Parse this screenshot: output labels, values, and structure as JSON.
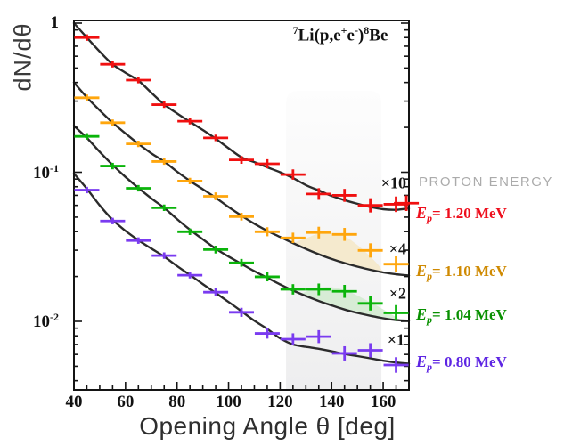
{
  "figure": {
    "reaction_label": {
      "segments": [
        {
          "t": "7",
          "sup": true
        },
        {
          "t": "Li(p,e",
          "sup": false
        },
        {
          "t": "+",
          "sup": true
        },
        {
          "t": "e",
          "sup": false
        },
        {
          "t": "-",
          "sup": true
        },
        {
          "t": ")",
          "sup": false
        },
        {
          "t": "8",
          "sup": true
        },
        {
          "t": "Be",
          "sup": false
        }
      ]
    },
    "legend_header": "PROTON ENERGY",
    "legend_header_color": "#ababab"
  },
  "chart_data": {
    "type": "scatter",
    "title": "7Li(p,e+e-)8Be",
    "xlabel": "Opening Angle θ [deg]",
    "ylabel": "dN/dθ",
    "x_scale": "linear",
    "y_scale": "log",
    "xlim": [
      40,
      170
    ],
    "ylim": [
      0.0035,
      1
    ],
    "grid": false,
    "x_major_ticks": [
      40,
      60,
      80,
      100,
      120,
      140,
      160
    ],
    "x_minor_step": 5,
    "y_major_ticks": [
      {
        "base": "1",
        "exp": "",
        "value": 1
      },
      {
        "base": "10",
        "exp": "-1",
        "value": 0.1
      },
      {
        "base": "10",
        "exp": "-2",
        "value": 0.01
      }
    ],
    "highlight_band": {
      "x0": 122.3,
      "x1": 159.3,
      "color_top": "#fdfdfd",
      "color_bottom": "#eeeeef"
    },
    "curve_color": "#2b2b2b",
    "series": [
      {
        "name": "Ep = 1.20 MeV",
        "scale_label": "×10",
        "color": "#f01010",
        "legend": {
          "E": "E",
          "sub": "p",
          "rest": "= 1.20 MeV",
          "color": "#ee0e1c"
        },
        "points": [
          [
            45,
            0.8,
            0.05
          ],
          [
            55,
            0.53,
            0.05
          ],
          [
            65,
            0.415,
            0.05
          ],
          [
            75,
            0.284,
            0.05
          ],
          [
            85,
            0.22,
            0.05
          ],
          [
            95,
            0.17,
            0.05
          ],
          [
            105,
            0.121,
            0.06
          ],
          [
            115,
            0.114,
            0.07
          ],
          [
            125,
            0.0965,
            0.08
          ],
          [
            135,
            0.0715,
            0.09
          ],
          [
            145,
            0.07,
            0.1
          ],
          [
            155,
            0.06,
            0.11
          ],
          [
            165,
            0.061,
            0.12
          ],
          [
            169,
            0.062,
            0.12
          ]
        ],
        "curve": [
          [
            40,
            1.0
          ],
          [
            45,
            0.8
          ],
          [
            50,
            0.645
          ],
          [
            55,
            0.53
          ],
          [
            60,
            0.465
          ],
          [
            65,
            0.412
          ],
          [
            70,
            0.342
          ],
          [
            75,
            0.285
          ],
          [
            80,
            0.248
          ],
          [
            85,
            0.218
          ],
          [
            90,
            0.192
          ],
          [
            95,
            0.168
          ],
          [
            100,
            0.145
          ],
          [
            105,
            0.126
          ],
          [
            110,
            0.117
          ],
          [
            115,
            0.108
          ],
          [
            120,
            0.1
          ],
          [
            125,
            0.0915
          ],
          [
            130,
            0.082
          ],
          [
            135,
            0.0755
          ],
          [
            140,
            0.0695
          ],
          [
            145,
            0.065
          ],
          [
            150,
            0.0615
          ],
          [
            155,
            0.0585
          ],
          [
            160,
            0.0565
          ],
          [
            165,
            0.056
          ],
          [
            170,
            0.0572
          ]
        ],
        "bump_fill": null
      },
      {
        "name": "Ep = 1.10 MeV",
        "scale_label": "×4",
        "color": "#ffa60d",
        "legend": {
          "E": "E",
          "sub": "p",
          "rest": "= 1.10 MeV",
          "color": "#cf8a02"
        },
        "points": [
          [
            45,
            0.316,
            0.05
          ],
          [
            55,
            0.215,
            0.05
          ],
          [
            65,
            0.155,
            0.05
          ],
          [
            75,
            0.118,
            0.05
          ],
          [
            85,
            0.0873,
            0.05
          ],
          [
            95,
            0.069,
            0.06
          ],
          [
            105,
            0.0504,
            0.06
          ],
          [
            115,
            0.0399,
            0.07
          ],
          [
            125,
            0.0363,
            0.08
          ],
          [
            135,
            0.0394,
            0.09
          ],
          [
            145,
            0.0383,
            0.1
          ],
          [
            155,
            0.0299,
            0.11
          ],
          [
            165,
            0.0242,
            0.12
          ]
        ],
        "curve": [
          [
            40,
            0.4
          ],
          [
            45,
            0.318
          ],
          [
            50,
            0.26
          ],
          [
            55,
            0.215
          ],
          [
            60,
            0.182
          ],
          [
            65,
            0.155
          ],
          [
            70,
            0.134
          ],
          [
            75,
            0.118
          ],
          [
            80,
            0.101
          ],
          [
            85,
            0.0875
          ],
          [
            90,
            0.077
          ],
          [
            95,
            0.0675
          ],
          [
            100,
            0.0585
          ],
          [
            105,
            0.0512
          ],
          [
            110,
            0.0452
          ],
          [
            115,
            0.0405
          ],
          [
            120,
            0.0368
          ],
          [
            125,
            0.0335
          ],
          [
            130,
            0.0306
          ],
          [
            135,
            0.0282
          ],
          [
            140,
            0.0262
          ],
          [
            145,
            0.0246
          ],
          [
            150,
            0.0233
          ],
          [
            155,
            0.0222
          ],
          [
            160,
            0.0213
          ],
          [
            165,
            0.0207
          ],
          [
            170,
            0.0203
          ]
        ],
        "bump_fill": {
          "color": "#f4e8ca",
          "upper": [
            [
              125,
              0.0335
            ],
            [
              130,
              0.036
            ],
            [
              135,
              0.0388
            ],
            [
              140,
              0.0392
            ],
            [
              145,
              0.0372
            ],
            [
              150,
              0.0325
            ],
            [
              155,
              0.0272
            ],
            [
              158,
              0.024
            ],
            [
              160,
              0.0213
            ]
          ]
        }
      },
      {
        "name": "Ep = 1.04 MeV",
        "scale_label": "×2",
        "color": "#0ab40a",
        "legend": {
          "E": "E",
          "sub": "p",
          "rest": "= 1.04 MeV",
          "color": "#089000"
        },
        "points": [
          [
            45,
            0.174,
            0.05
          ],
          [
            55,
            0.11,
            0.05
          ],
          [
            65,
            0.0781,
            0.05
          ],
          [
            75,
            0.0578,
            0.05
          ],
          [
            85,
            0.0399,
            0.05
          ],
          [
            95,
            0.0303,
            0.06
          ],
          [
            105,
            0.0247,
            0.06
          ],
          [
            115,
            0.0199,
            0.07
          ],
          [
            125,
            0.0164,
            0.08
          ],
          [
            135,
            0.0164,
            0.09
          ],
          [
            145,
            0.0159,
            0.1
          ],
          [
            155,
            0.0132,
            0.11
          ],
          [
            165,
            0.0114,
            0.12
          ]
        ],
        "curve": [
          [
            40,
            0.205
          ],
          [
            45,
            0.17
          ],
          [
            50,
            0.137
          ],
          [
            55,
            0.112
          ],
          [
            60,
            0.093
          ],
          [
            65,
            0.0785
          ],
          [
            70,
            0.0668
          ],
          [
            75,
            0.0578
          ],
          [
            80,
            0.0485
          ],
          [
            85,
            0.0412
          ],
          [
            90,
            0.0355
          ],
          [
            95,
            0.0307
          ],
          [
            100,
            0.0272
          ],
          [
            105,
            0.0243
          ],
          [
            110,
            0.0217
          ],
          [
            115,
            0.0196
          ],
          [
            120,
            0.0177
          ],
          [
            125,
            0.0161
          ],
          [
            130,
            0.0148
          ],
          [
            135,
            0.0137
          ],
          [
            140,
            0.0128
          ],
          [
            145,
            0.012
          ],
          [
            150,
            0.0114
          ],
          [
            155,
            0.0109
          ],
          [
            160,
            0.0105
          ],
          [
            165,
            0.0102
          ],
          [
            170,
            0.0101
          ]
        ],
        "bump_fill": {
          "color": "#d5ecd2",
          "upper": [
            [
              128,
              0.0153
            ],
            [
              133,
              0.0165
            ],
            [
              138,
              0.017
            ],
            [
              143,
              0.0166
            ],
            [
              148,
              0.0155
            ],
            [
              153,
              0.014
            ],
            [
              158,
              0.0126
            ],
            [
              163,
              0.0112
            ],
            [
              167,
              0.0101
            ]
          ]
        }
      },
      {
        "name": "Ep = 0.80 MeV",
        "scale_label": "×1",
        "color": "#7a3bf0",
        "legend": {
          "E": "E",
          "sub": "p",
          "rest": "= 0.80 MeV",
          "color": "#5d25e3"
        },
        "points": [
          [
            45,
            0.076,
            0.05
          ],
          [
            55,
            0.0471,
            0.05
          ],
          [
            65,
            0.0348,
            0.05
          ],
          [
            75,
            0.0276,
            0.05
          ],
          [
            85,
            0.0204,
            0.05
          ],
          [
            95,
            0.0157,
            0.06
          ],
          [
            105,
            0.0115,
            0.07
          ],
          [
            115,
            0.0083,
            0.08
          ],
          [
            125,
            0.0076,
            0.09
          ],
          [
            135,
            0.0079,
            0.1
          ],
          [
            145,
            0.0061,
            0.11
          ],
          [
            155,
            0.0064,
            0.11
          ],
          [
            165,
            0.0051,
            0.12
          ]
        ],
        "curve": [
          [
            40,
            0.098
          ],
          [
            45,
            0.0775
          ],
          [
            50,
            0.06
          ],
          [
            55,
            0.048
          ],
          [
            60,
            0.0405
          ],
          [
            65,
            0.035
          ],
          [
            70,
            0.0308
          ],
          [
            75,
            0.0272
          ],
          [
            80,
            0.0235
          ],
          [
            85,
            0.0205
          ],
          [
            90,
            0.0178
          ],
          [
            95,
            0.0155
          ],
          [
            100,
            0.0135
          ],
          [
            105,
            0.0117
          ],
          [
            110,
            0.0101
          ],
          [
            115,
            0.0089
          ],
          [
            120,
            0.0077
          ],
          [
            125,
            0.007
          ],
          [
            130,
            0.00675
          ],
          [
            135,
            0.00655
          ],
          [
            140,
            0.0063
          ],
          [
            145,
            0.00605
          ],
          [
            150,
            0.00585
          ],
          [
            155,
            0.00565
          ],
          [
            160,
            0.00545
          ],
          [
            165,
            0.0053
          ],
          [
            170,
            0.0052
          ]
        ],
        "bump_fill": null
      }
    ]
  }
}
